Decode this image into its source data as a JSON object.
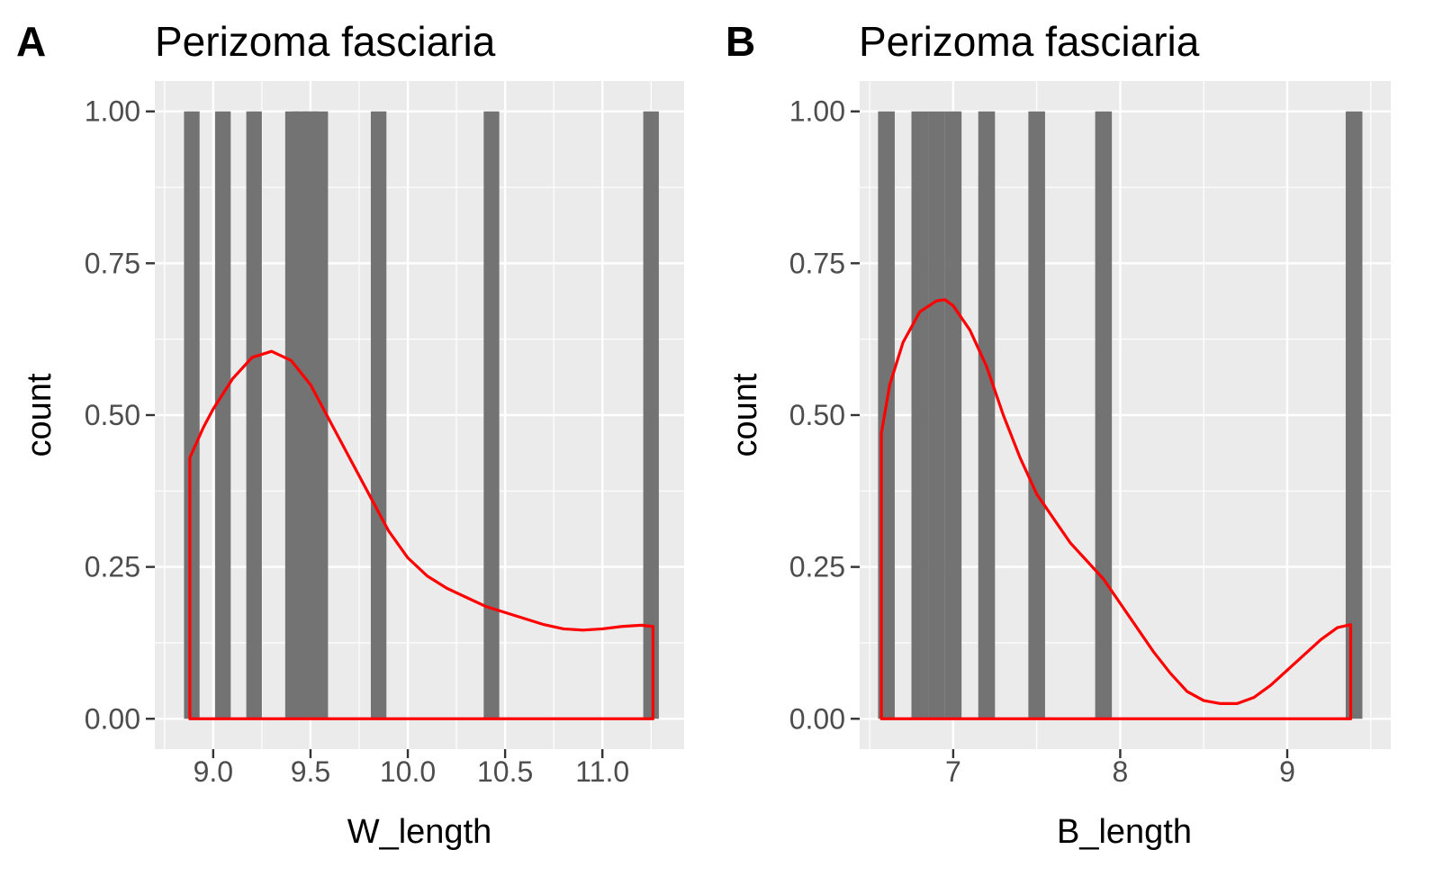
{
  "chart_data": [
    {
      "type": "bar",
      "panel_label": "A",
      "title": "Perizoma fasciaria",
      "xlabel": "W_length",
      "ylabel": "count",
      "xlim": [
        8.7,
        11.42
      ],
      "ylim": [
        -0.05,
        1.05
      ],
      "x_ticks": [
        9.0,
        9.5,
        10.0,
        10.5,
        11.0
      ],
      "x_tick_labels": [
        "9.0",
        "9.5",
        "10.0",
        "10.5",
        "11.0"
      ],
      "y_ticks": [
        0,
        0.25,
        0.5,
        0.75,
        1.0
      ],
      "y_tick_labels": [
        "0.00",
        "0.25",
        "0.50",
        "0.75",
        "1.00"
      ],
      "bars": [
        {
          "x": 8.89,
          "value": 1
        },
        {
          "x": 9.05,
          "value": 1
        },
        {
          "x": 9.21,
          "value": 1
        },
        {
          "x": 9.41,
          "value": 1
        },
        {
          "x": 9.45,
          "value": 1
        },
        {
          "x": 9.5,
          "value": 1
        },
        {
          "x": 9.55,
          "value": 1
        },
        {
          "x": 9.85,
          "value": 1
        },
        {
          "x": 10.43,
          "value": 1
        },
        {
          "x": 11.25,
          "value": 1
        }
      ],
      "bar_width": 0.08,
      "density": {
        "x": [
          8.88,
          8.95,
          9.0,
          9.1,
          9.2,
          9.3,
          9.4,
          9.5,
          9.6,
          9.7,
          9.8,
          9.9,
          10.0,
          10.1,
          10.2,
          10.3,
          10.4,
          10.5,
          10.6,
          10.7,
          10.8,
          10.9,
          11.0,
          11.1,
          11.2,
          11.26
        ],
        "y": [
          0.43,
          0.48,
          0.51,
          0.56,
          0.595,
          0.605,
          0.59,
          0.55,
          0.49,
          0.43,
          0.37,
          0.31,
          0.265,
          0.235,
          0.215,
          0.2,
          0.185,
          0.175,
          0.165,
          0.155,
          0.148,
          0.146,
          0.148,
          0.152,
          0.154,
          0.152
        ]
      },
      "colors": {
        "bar": "#737373",
        "density": "#ff0000",
        "panel": "#ebebeb",
        "grid": "#ffffff"
      }
    },
    {
      "type": "bar",
      "panel_label": "B",
      "title": "Perizoma fasciaria",
      "xlabel": "B_length",
      "ylabel": "count",
      "xlim": [
        6.44,
        9.62
      ],
      "ylim": [
        -0.05,
        1.05
      ],
      "x_ticks": [
        7,
        8,
        9
      ],
      "x_tick_labels": [
        "7",
        "8",
        "9"
      ],
      "y_ticks": [
        0,
        0.25,
        0.5,
        0.75,
        1.0
      ],
      "y_tick_labels": [
        "0.00",
        "0.25",
        "0.50",
        "0.75",
        "1.00"
      ],
      "bars": [
        {
          "x": 6.6,
          "value": 1
        },
        {
          "x": 6.8,
          "value": 1
        },
        {
          "x": 6.9,
          "value": 1
        },
        {
          "x": 7.0,
          "value": 1
        },
        {
          "x": 7.2,
          "value": 1
        },
        {
          "x": 7.5,
          "value": 1
        },
        {
          "x": 7.9,
          "value": 1
        },
        {
          "x": 9.4,
          "value": 1
        }
      ],
      "bar_width": 0.1,
      "density": {
        "x": [
          6.57,
          6.62,
          6.7,
          6.8,
          6.9,
          6.95,
          7.0,
          7.1,
          7.2,
          7.3,
          7.4,
          7.5,
          7.6,
          7.7,
          7.8,
          7.9,
          8.0,
          8.1,
          8.2,
          8.3,
          8.4,
          8.5,
          8.6,
          8.7,
          8.8,
          8.9,
          9.0,
          9.1,
          9.2,
          9.3,
          9.38
        ],
        "y": [
          0.47,
          0.55,
          0.62,
          0.67,
          0.688,
          0.69,
          0.68,
          0.64,
          0.58,
          0.5,
          0.43,
          0.37,
          0.33,
          0.29,
          0.26,
          0.23,
          0.19,
          0.15,
          0.11,
          0.075,
          0.045,
          0.03,
          0.025,
          0.025,
          0.035,
          0.055,
          0.08,
          0.105,
          0.13,
          0.15,
          0.155
        ]
      },
      "colors": {
        "bar": "#737373",
        "density": "#ff0000",
        "panel": "#ebebeb",
        "grid": "#ffffff"
      }
    }
  ]
}
